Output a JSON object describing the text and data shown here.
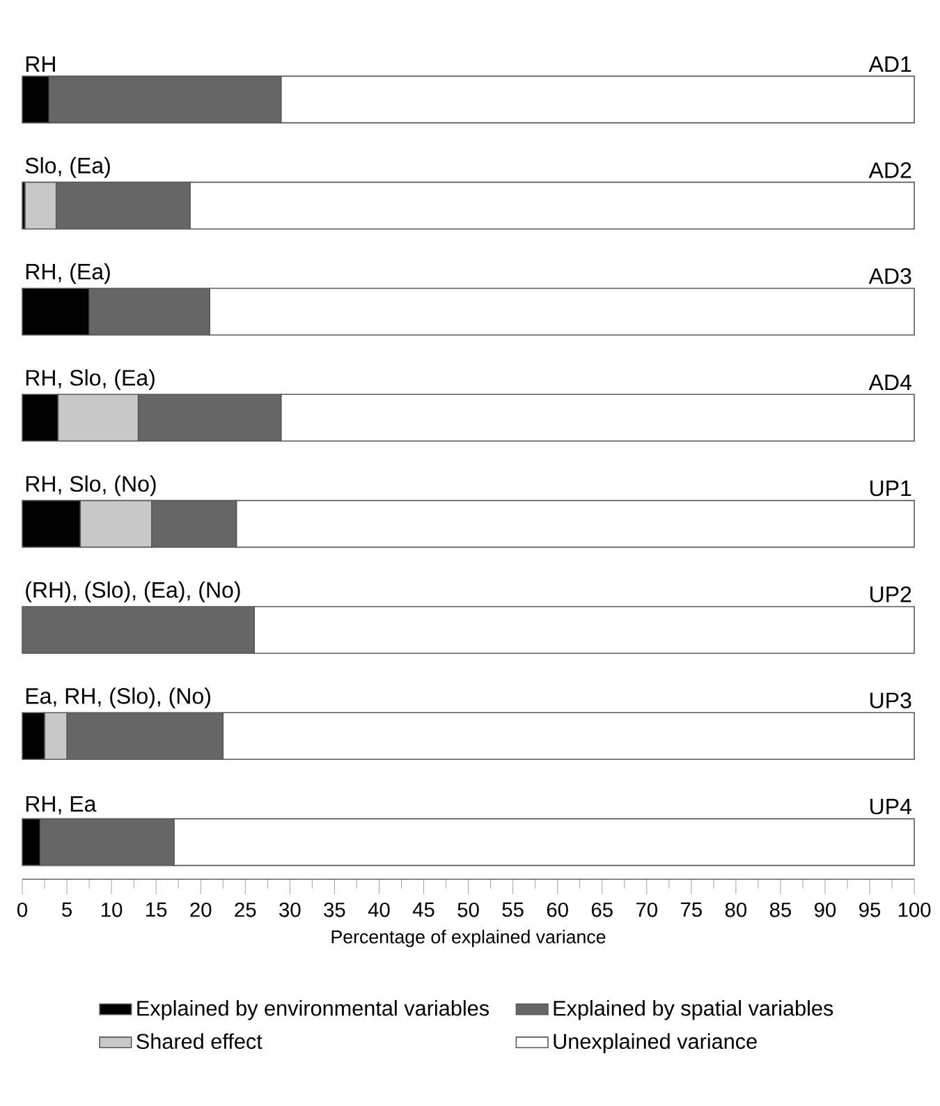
{
  "chart_data": {
    "type": "bar",
    "orientation": "horizontal",
    "stacked": true,
    "categories": [
      "AD1",
      "AD2",
      "AD3",
      "AD4",
      "UP1",
      "UP2",
      "UP3",
      "UP4"
    ],
    "series": [
      {
        "name": "Explained by environmental variables",
        "color": "#000000",
        "values": [
          3,
          0.3,
          7.5,
          4,
          6.5,
          0,
          2.5,
          2
        ]
      },
      {
        "name": "Shared effect",
        "color": "#c8c8c8",
        "values": [
          0,
          3.5,
          0,
          9,
          8,
          0,
          2.5,
          0
        ]
      },
      {
        "name": "Explained by spatial variables",
        "color": "#666666",
        "values": [
          26,
          15,
          13.5,
          16,
          9.5,
          26,
          17.5,
          15
        ]
      },
      {
        "name": "Unexplained variance",
        "color": "#ffffff",
        "values": [
          71,
          81.2,
          79,
          71,
          76,
          74,
          77.5,
          83
        ]
      }
    ],
    "xlim": [
      0,
      100
    ],
    "xticks": [
      0,
      5,
      10,
      15,
      20,
      25,
      30,
      35,
      40,
      45,
      50,
      55,
      60,
      65,
      70,
      75,
      80,
      85,
      90,
      95,
      100
    ],
    "xlabel": "Percentage of explained variance",
    "legend": "bottom",
    "annotations": [
      "RH",
      "Slo, (Ea)",
      "RH, (Ea)",
      "RH, Slo, (Ea)",
      "RH, Slo, (No)",
      "(RH), (Slo), (Ea), (No)",
      "Ea, RH, (Slo), (No)",
      "RH, Ea"
    ]
  }
}
